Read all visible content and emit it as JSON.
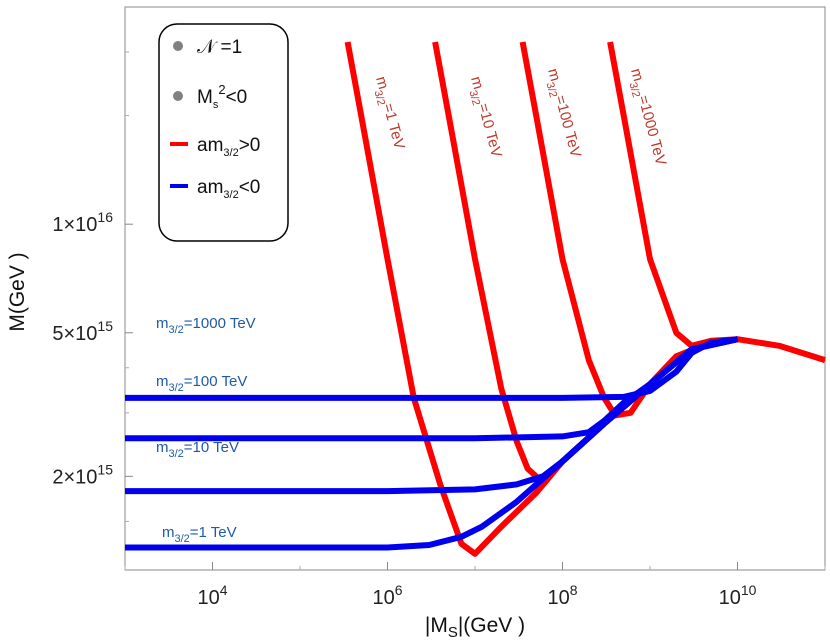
{
  "chart_data": {
    "type": "line",
    "xscale": "log",
    "yscale": "log",
    "xlabel": "|M_S|(GeV )",
    "ylabel": "M(GeV )",
    "xlim": [
      1000,
      100000000000.0
    ],
    "ylim": [
      1100000000000000.0,
      4e+16
    ],
    "x_ticks": [
      {
        "value": 10000.0,
        "mantissa": "10",
        "exp": "4"
      },
      {
        "value": 1000000.0,
        "mantissa": "10",
        "exp": "6"
      },
      {
        "value": 100000000.0,
        "mantissa": "10",
        "exp": "8"
      },
      {
        "value": 10000000000.0,
        "mantissa": "10",
        "exp": "10"
      }
    ],
    "y_ticks": [
      {
        "value": 2000000000000000.0,
        "mantissa": "2×10",
        "exp": "15"
      },
      {
        "value": 5000000000000000.0,
        "mantissa": "5×10",
        "exp": "15"
      },
      {
        "value": 1e+16,
        "mantissa": "1×10",
        "exp": "16"
      }
    ],
    "legend": [
      {
        "marker": "dot",
        "color": "#808080",
        "main": "𝒩",
        "rest": " =1"
      },
      {
        "marker": "dot",
        "color": "#808080",
        "main": "M",
        "sub": "s",
        "sup": "2",
        "rest": "<0"
      },
      {
        "marker": "line",
        "color": "#ff0000",
        "main": "am",
        "sub": "3/2",
        "rest": ">0"
      },
      {
        "marker": "line",
        "color": "#0000ee",
        "main": "am",
        "sub": "3/2",
        "rest": "<0"
      }
    ],
    "series": [
      {
        "name": "m3/2=1 TeV",
        "sign": "am3/2>0",
        "color": "#ff0000",
        "x": [
          350000.0,
          500000.0,
          1000000.0,
          2000000.0,
          4000000.0,
          7000000.0,
          10000000.0,
          20000000.0,
          50000000.0,
          100000000.0,
          300000000.0,
          1000000000.0,
          2000000000.0,
          5000000000.0,
          10000000000.0,
          30000000000.0,
          100000000000.0
        ],
        "y": [
          3.2e+16,
          2e+16,
          8000000000000000.0,
          3300000000000000.0,
          1900000000000000.0,
          1300000000000000.0,
          1220000000000000.0,
          1450000000000000.0,
          1800000000000000.0,
          2200000000000000.0,
          2800000000000000.0,
          3600000000000000.0,
          4300000000000000.0,
          4700000000000000.0,
          4800000000000000.0,
          4600000000000000.0,
          4200000000000000.0
        ]
      },
      {
        "name": "m3/2=10 TeV",
        "sign": "am3/2>0",
        "color": "#ff0000",
        "x": [
          3500000.0,
          5000000.0,
          10000000.0,
          20000000.0,
          30000000.0,
          40000000.0,
          60000000.0,
          100000000.0,
          300000000.0,
          1000000000.0,
          2000000000.0,
          5000000000.0
        ],
        "y": [
          3.2e+16,
          2e+16,
          8000000000000000.0,
          3500000000000000.0,
          2500000000000000.0,
          2100000000000000.0,
          1920000000000000.0,
          2200000000000000.0,
          2800000000000000.0,
          3600000000000000.0,
          4300000000000000.0,
          4700000000000000.0
        ]
      },
      {
        "name": "m3/2=100 TeV",
        "sign": "am3/2>0",
        "color": "#ff0000",
        "x": [
          35000000.0,
          50000000.0,
          100000000.0,
          200000000.0,
          300000000.0,
          400000000.0,
          600000000.0,
          1000000000.0,
          2000000000.0,
          5000000000.0
        ],
        "y": [
          3.2e+16,
          2e+16,
          8000000000000000.0,
          4200000000000000.0,
          3300000000000000.0,
          2950000000000000.0,
          3000000000000000.0,
          3600000000000000.0,
          4300000000000000.0,
          4700000000000000.0
        ]
      },
      {
        "name": "m3/2=1000 TeV",
        "sign": "am3/2>0",
        "color": "#ff0000",
        "x": [
          350000000.0,
          500000000.0,
          1000000000.0,
          2000000000.0,
          3000000000.0,
          5000000000.0,
          10000000000.0
        ],
        "y": [
          3.2e+16,
          2e+16,
          8000000000000000.0,
          5000000000000000.0,
          4600000000000000.0,
          4750000000000000.0,
          4800000000000000.0
        ]
      },
      {
        "name": "m3/2=1 TeV",
        "sign": "am3/2<0",
        "color": "#0000ee",
        "x": [
          1000,
          100000.0,
          1000000.0,
          3000000.0,
          7000000.0,
          12000000.0,
          30000000.0,
          100000000.0,
          300000000.0,
          1000000000.0,
          3000000000.0,
          10000000000.0
        ],
        "y": [
          1270000000000000.0,
          1270000000000000.0,
          1270000000000000.0,
          1290000000000000.0,
          1360000000000000.0,
          1450000000000000.0,
          1700000000000000.0,
          2200000000000000.0,
          2800000000000000.0,
          3600000000000000.0,
          4500000000000000.0,
          4800000000000000.0
        ]
      },
      {
        "name": "m3/2=10 TeV",
        "sign": "am3/2<0",
        "color": "#0000ee",
        "x": [
          1000,
          1000000.0,
          10000000.0,
          30000000.0,
          60000000.0,
          100000000.0,
          300000000.0,
          1000000000.0,
          3000000000.0,
          10000000000.0
        ],
        "y": [
          1820000000000000.0,
          1820000000000000.0,
          1840000000000000.0,
          1900000000000000.0,
          2000000000000000.0,
          2200000000000000.0,
          2800000000000000.0,
          3600000000000000.0,
          4500000000000000.0,
          4800000000000000.0
        ]
      },
      {
        "name": "m3/2=100 TeV",
        "sign": "am3/2<0",
        "color": "#0000ee",
        "x": [
          1000,
          10000000.0,
          100000000.0,
          200000000.0,
          300000000.0,
          500000000.0,
          1000000000.0,
          3000000000.0,
          10000000000.0
        ],
        "y": [
          2550000000000000.0,
          2550000000000000.0,
          2580000000000000.0,
          2650000000000000.0,
          2850000000000000.0,
          3200000000000000.0,
          3600000000000000.0,
          4500000000000000.0,
          4800000000000000.0
        ]
      },
      {
        "name": "m3/2=1000 TeV",
        "sign": "am3/2<0",
        "color": "#0000ee",
        "x": [
          1000,
          100000000.0,
          500000000.0,
          1000000000.0,
          2000000000.0,
          3000000000.0,
          5000000000.0,
          10000000000.0
        ],
        "y": [
          3300000000000000.0,
          3300000000000000.0,
          3320000000000000.0,
          3450000000000000.0,
          3900000000000000.0,
          4400000000000000.0,
          4700000000000000.0,
          4800000000000000.0
        ]
      }
    ],
    "red_labels": [
      {
        "main": "m",
        "sub": "3/2",
        "rest": "=1 TeV"
      },
      {
        "main": "m",
        "sub": "3/2",
        "rest": "=10 TeV"
      },
      {
        "main": "m",
        "sub": "3/2",
        "rest": "=100 TeV"
      },
      {
        "main": "m",
        "sub": "3/2",
        "rest": "=1000 TeV"
      }
    ],
    "blue_labels": [
      {
        "main": "m",
        "sub": "3/2",
        "rest": "=1000 TeV"
      },
      {
        "main": "m",
        "sub": "3/2",
        "rest": "=100 TeV"
      },
      {
        "main": "m",
        "sub": "3/2",
        "rest": "=10 TeV"
      },
      {
        "main": "m",
        "sub": "3/2",
        "rest": "=1 TeV"
      }
    ]
  }
}
